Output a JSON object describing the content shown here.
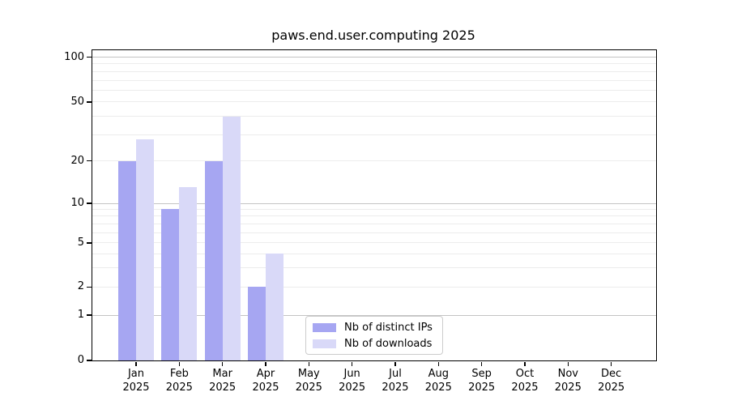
{
  "figure": {
    "title": "paws.end.user.computing 2025"
  },
  "chart_data": {
    "type": "bar",
    "title": "paws.end.user.computing 2025",
    "x_axis": {
      "categories": [
        "Jan 2025",
        "Feb 2025",
        "Mar 2025",
        "Apr 2025",
        "May 2025",
        "Jun 2025",
        "Jul 2025",
        "Aug 2025",
        "Sep 2025",
        "Oct 2025",
        "Nov 2025",
        "Dec 2025"
      ]
    },
    "y_axis": {
      "scale": "log",
      "tick_labels": [
        "0",
        "1",
        "2",
        "5",
        "10",
        "20",
        "50",
        "100"
      ],
      "tick_values": [
        0,
        1,
        2,
        5,
        10,
        20,
        50,
        100
      ],
      "major_gridline_values": [
        1,
        10,
        100
      ],
      "minor_gridline_values": [
        3,
        4,
        6,
        7,
        8,
        9,
        30,
        40,
        60,
        70,
        80,
        90
      ]
    },
    "series": [
      {
        "name": "Nb of distinct IPs",
        "color": "#a6a6f2",
        "values": [
          20,
          9,
          20,
          2,
          0,
          0,
          0,
          0,
          0,
          0,
          0,
          0
        ]
      },
      {
        "name": "Nb of downloads",
        "color": "#d9d9f8",
        "values": [
          28,
          13,
          40,
          4,
          0,
          0,
          0,
          0,
          0,
          0,
          0,
          0
        ]
      }
    ],
    "legend": {
      "position": "lower center inside",
      "entries": [
        "Nb of distinct IPs",
        "Nb of downloads"
      ]
    },
    "grid": "on",
    "colors": {
      "frame": "#000000",
      "grid_major": "#c4c4c4",
      "grid_minor": "#ececec",
      "background": "#ffffff"
    }
  }
}
